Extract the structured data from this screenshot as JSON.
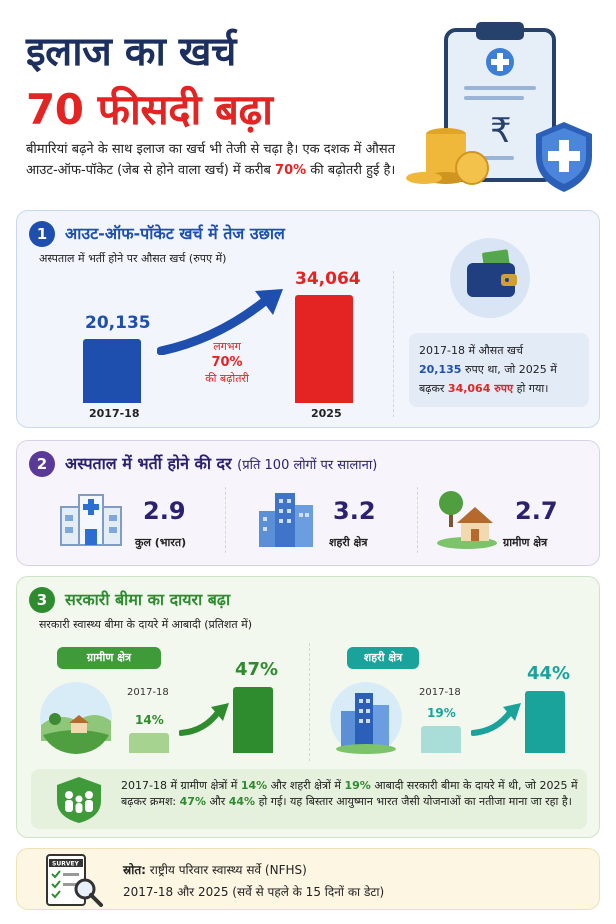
{
  "header": {
    "title_line1": "इलाज का खर्च",
    "title_line2": "70 फीसदी बढ़ा",
    "intro_part1": "बीमारियां बढ़ने के साथ इलाज का खर्च भी तेजी से चढ़ा है। एक दशक में औसत आउट-ऑफ-पॉकेट (जेब से होने वाला खर्च) में करीब ",
    "intro_highlight": "70%",
    "intro_part2": " की बढ़ोतरी हुई है।",
    "hero_icon": "medical-bill-coins-shield"
  },
  "section1": {
    "number": "1",
    "title": "आउट-ऑफ-पॉकेट खर्च में तेज उछाल",
    "subtitle": "अस्पताल में भर्ती होने पर औसत खर्च (रुपए में)",
    "growth_top": "लगभग",
    "growth_value": "70%",
    "growth_bottom": "की बढ़ोतरी",
    "wallet_icon": "wallet-icon",
    "note_part1": "2017-18 में औसत खर्च",
    "note_value1": "20,135",
    "note_part2": " रुपए था, जो 2025 में बढ़कर ",
    "note_value2": "34,064 रुपए",
    "note_part3": " हो गया।"
  },
  "chart_data": {
    "type": "bar",
    "categories": [
      "2017-18",
      "2025"
    ],
    "values": [
      20135,
      34064
    ],
    "value_labels": [
      "20,135",
      "34,064"
    ],
    "colors": [
      "#1f4fae",
      "#e32423"
    ],
    "title": "अस्पताल में भर्ती होने पर औसत खर्च (रुपए में)",
    "ylim": [
      0,
      34064
    ]
  },
  "section2": {
    "number": "2",
    "title": "अस्पताल में भर्ती होने की दर",
    "title_suffix": "(प्रति 100 लोगों पर सालाना)",
    "stats": [
      {
        "value": "2.9",
        "label": "कुल (भारत)",
        "icon": "hospital-icon"
      },
      {
        "value": "3.2",
        "label": "शहरी क्षेत्र",
        "icon": "city-buildings-icon"
      },
      {
        "value": "2.7",
        "label": "ग्रामीण क्षेत्र",
        "icon": "village-hut-icon"
      }
    ]
  },
  "section3": {
    "number": "3",
    "title": "सरकारी बीमा का दायरा बढ़ा",
    "subtitle": "सरकारी स्वास्थ्य बीमा के दायरे में आबादी (प्रतिशत में)",
    "rural": {
      "label": "ग्रामीण क्षेत्र",
      "year": "2017-18",
      "before": "14%",
      "after": "47%",
      "before_value": 14,
      "after_value": 47
    },
    "urban": {
      "label": "शहरी क्षेत्र",
      "year": "2017-18",
      "before": "19%",
      "after": "44%",
      "before_value": 19,
      "after_value": 44
    },
    "note": {
      "p1": "2017-18 में ग्रामीण क्षेत्रों में ",
      "v1": "14%",
      "p2": " और शहरी क्षेत्रों में ",
      "v2": "19%",
      "p3": " आबादी सरकारी बीमा के दायरे में थी, जो 2025 में बढ़कर क्रमश: ",
      "v3": "47%",
      "p4": " और ",
      "v4": "44%",
      "p5": " हो गई। यह बिस्तार आयुष्मान भारत जैसी योजनाओं का नतीजा माना जा रहा है।"
    }
  },
  "source": {
    "icon_label": "SURVEY",
    "label": "स्रोत:",
    "text": " राष्ट्रीय परिवार स्वास्थ्य सर्वे (NFHS)",
    "years": "2017-18 और 2025 (सर्वे से पहले के 15 दिनों का डेटा)"
  },
  "colors": {
    "navy": "#1c2f5e",
    "red": "#e32423",
    "blue": "#1f4fae",
    "purple": "#2b2170",
    "green": "#2e8b2e",
    "teal": "#1aa39b"
  }
}
